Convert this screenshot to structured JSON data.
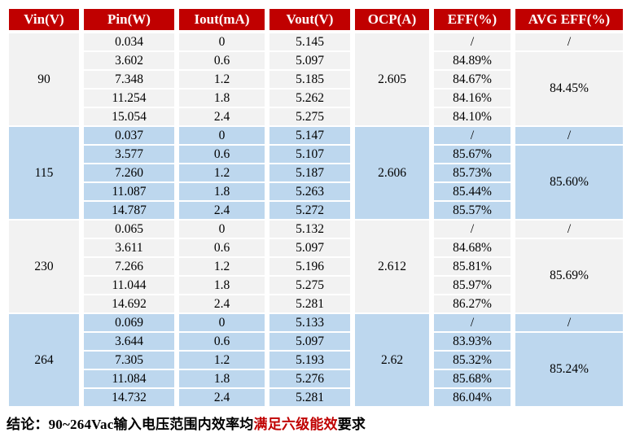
{
  "colors": {
    "header_bg": "#C00000",
    "header_text": "#FFFFFF",
    "row_gray": "#F2F2F2",
    "row_blue": "#BDD7EE",
    "conclusion_highlight": "#C00000"
  },
  "table": {
    "headers": [
      "Vin(V)",
      "Pin(W)",
      "Iout(mA)",
      "Vout(V)",
      "OCP(A)",
      "EFF(%)",
      "AVG EFF(%)"
    ],
    "groups": [
      {
        "vin": "90",
        "ocp": "2.605",
        "avg_eff_first": "/",
        "avg_eff": "84.45%",
        "rows": [
          {
            "pin": "0.034",
            "iout": "0",
            "vout": "5.145",
            "eff": "/"
          },
          {
            "pin": "3.602",
            "iout": "0.6",
            "vout": "5.097",
            "eff": "84.89%"
          },
          {
            "pin": "7.348",
            "iout": "1.2",
            "vout": "5.185",
            "eff": "84.67%"
          },
          {
            "pin": "11.254",
            "iout": "1.8",
            "vout": "5.262",
            "eff": "84.16%"
          },
          {
            "pin": "15.054",
            "iout": "2.4",
            "vout": "5.275",
            "eff": "84.10%"
          }
        ]
      },
      {
        "vin": "115",
        "ocp": "2.606",
        "avg_eff_first": "/",
        "avg_eff": "85.60%",
        "rows": [
          {
            "pin": "0.037",
            "iout": "0",
            "vout": "5.147",
            "eff": "/"
          },
          {
            "pin": "3.577",
            "iout": "0.6",
            "vout": "5.107",
            "eff": "85.67%"
          },
          {
            "pin": "7.260",
            "iout": "1.2",
            "vout": "5.187",
            "eff": "85.73%"
          },
          {
            "pin": "11.087",
            "iout": "1.8",
            "vout": "5.263",
            "eff": "85.44%"
          },
          {
            "pin": "14.787",
            "iout": "2.4",
            "vout": "5.272",
            "eff": "85.57%"
          }
        ]
      },
      {
        "vin": "230",
        "ocp": "2.612",
        "avg_eff_first": "/",
        "avg_eff": "85.69%",
        "rows": [
          {
            "pin": "0.065",
            "iout": "0",
            "vout": "5.132",
            "eff": "/"
          },
          {
            "pin": "3.611",
            "iout": "0.6",
            "vout": "5.097",
            "eff": "84.68%"
          },
          {
            "pin": "7.266",
            "iout": "1.2",
            "vout": "5.196",
            "eff": "85.81%"
          },
          {
            "pin": "11.044",
            "iout": "1.8",
            "vout": "5.275",
            "eff": "85.97%"
          },
          {
            "pin": "14.692",
            "iout": "2.4",
            "vout": "5.281",
            "eff": "86.27%"
          }
        ]
      },
      {
        "vin": "264",
        "ocp": "2.62",
        "avg_eff_first": "/",
        "avg_eff": "85.24%",
        "rows": [
          {
            "pin": "0.069",
            "iout": "0",
            "vout": "5.133",
            "eff": "/"
          },
          {
            "pin": "3.644",
            "iout": "0.6",
            "vout": "5.097",
            "eff": "83.93%"
          },
          {
            "pin": "7.305",
            "iout": "1.2",
            "vout": "5.193",
            "eff": "85.32%"
          },
          {
            "pin": "11.084",
            "iout": "1.8",
            "vout": "5.276",
            "eff": "85.68%"
          },
          {
            "pin": "14.732",
            "iout": "2.4",
            "vout": "5.281",
            "eff": "86.04%"
          }
        ]
      }
    ]
  },
  "conclusion": {
    "prefix": "结论：90~264Vac输入电压范围内效率均",
    "highlight": "满足六级能效",
    "suffix": "要求"
  }
}
